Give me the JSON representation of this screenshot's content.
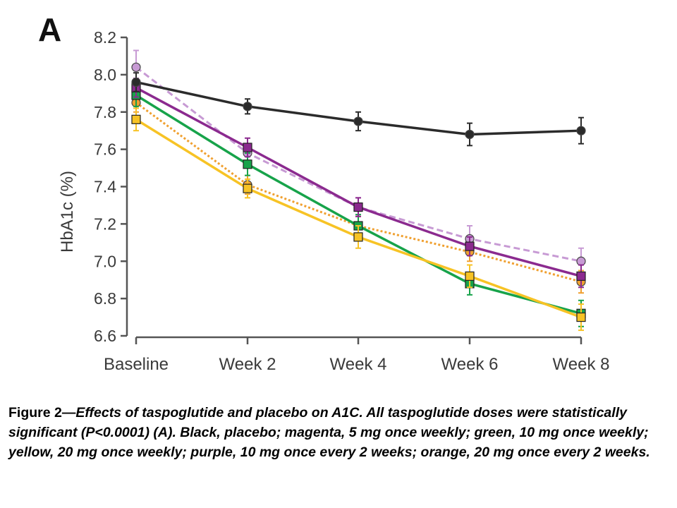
{
  "panel_label": "A",
  "caption": {
    "lead": "Figure 2—",
    "body": "Effects of taspoglutide and placebo on A1C. All taspoglutide doses were statistically significant (P<0.0001) (A). Black, placebo; magenta, 5 mg once weekly; green, 10 mg once weekly; yellow, 20 mg once weekly; purple, 10 mg once every 2 weeks; orange, 20 mg once every 2 weeks."
  },
  "chart_data": {
    "type": "line",
    "title": "",
    "xlabel": "",
    "ylabel": "HbA1c (%)",
    "categories": [
      "Baseline",
      "Week 2",
      "Week 4",
      "Week 6",
      "Week 8"
    ],
    "ylim": [
      6.6,
      8.2
    ],
    "yticks": [
      "6.6",
      "6.8",
      "7.0",
      "7.2",
      "7.4",
      "7.6",
      "7.8",
      "8.0",
      "8.2"
    ],
    "grid": false,
    "series": [
      {
        "color": "#c79ad4",
        "marker": "circle",
        "dash": "dashed",
        "values": [
          8.04,
          7.58,
          7.29,
          7.12,
          7.0
        ],
        "err": [
          0.09,
          0.05,
          0.05,
          0.07,
          0.07
        ]
      },
      {
        "color": "#f0a030",
        "marker": "circle",
        "dash": "dotted",
        "values": [
          7.85,
          7.41,
          7.19,
          7.05,
          6.89
        ],
        "err": [
          0.05,
          0.05,
          0.05,
          0.05,
          0.06
        ]
      },
      {
        "color": "#17a34a",
        "marker": "square",
        "dash": "solid",
        "values": [
          7.89,
          7.52,
          7.19,
          6.88,
          6.72
        ],
        "err": [
          0.06,
          0.06,
          0.06,
          0.06,
          0.07
        ]
      },
      {
        "color": "#f7c325",
        "marker": "square",
        "dash": "solid",
        "values": [
          7.76,
          7.39,
          7.13,
          6.92,
          6.7
        ],
        "err": [
          0.06,
          0.05,
          0.06,
          0.06,
          0.07
        ]
      },
      {
        "color": "#8b2a8f",
        "marker": "square",
        "dash": "solid",
        "values": [
          7.93,
          7.61,
          7.29,
          7.08,
          6.92
        ],
        "err": [
          0.05,
          0.05,
          0.05,
          0.05,
          0.06
        ]
      },
      {
        "color": "#2b2b2b",
        "marker": "circle",
        "dash": "solid",
        "values": [
          7.96,
          7.83,
          7.75,
          7.68,
          7.7
        ],
        "err": [
          0.05,
          0.04,
          0.05,
          0.06,
          0.07
        ]
      }
    ]
  }
}
